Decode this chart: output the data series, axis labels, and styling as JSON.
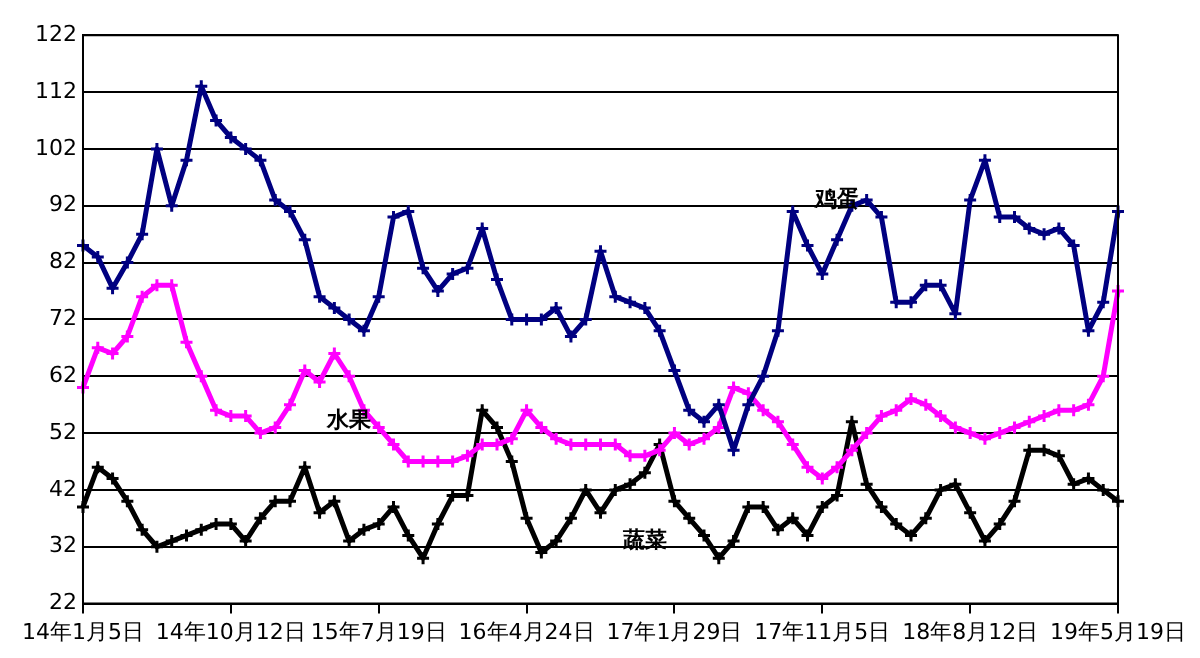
{
  "chart_data": {
    "type": "line",
    "categories": [
      "14年1月5日",
      null,
      null,
      null,
      null,
      null,
      null,
      null,
      null,
      null,
      "14年10月12日",
      null,
      null,
      null,
      null,
      null,
      null,
      null,
      null,
      null,
      "15年7月19日",
      null,
      null,
      null,
      null,
      null,
      null,
      null,
      null,
      null,
      "16年4月24日",
      null,
      null,
      null,
      null,
      null,
      null,
      null,
      null,
      null,
      "17年1月29日",
      null,
      null,
      null,
      null,
      null,
      null,
      null,
      null,
      null,
      "17年11月5日",
      null,
      null,
      null,
      null,
      null,
      null,
      null,
      null,
      null,
      "18年8月12日",
      null,
      null,
      null,
      null,
      null,
      null,
      null,
      null,
      null,
      "19年5月19日"
    ],
    "series": [
      {
        "name": "鸡蛋",
        "color": "#000080",
        "values": [
          85,
          83,
          77.5,
          82,
          87,
          102,
          92,
          100,
          113,
          107,
          104,
          102,
          100,
          93,
          91,
          86,
          76,
          74,
          72,
          70,
          76,
          90,
          91,
          81,
          77,
          80,
          81,
          88,
          79,
          72,
          72,
          72,
          74,
          69,
          72,
          84,
          76,
          75,
          74,
          70,
          63,
          56,
          54,
          57,
          49,
          57,
          62,
          70,
          91,
          85,
          80,
          86,
          92,
          93,
          90,
          75,
          75,
          78,
          78,
          73,
          93,
          100,
          90,
          90,
          88,
          87,
          88,
          85,
          70,
          75,
          91
        ]
      },
      {
        "name": "水果",
        "color": "#ff00ff",
        "values": [
          60,
          67,
          66,
          69,
          76,
          78,
          78,
          68,
          62,
          56,
          55,
          55,
          52,
          53,
          57,
          63,
          61,
          66,
          62,
          56,
          53,
          50,
          47,
          47,
          47,
          47,
          48,
          50,
          50,
          51,
          56,
          53,
          51,
          50,
          50,
          50,
          50,
          48,
          48,
          49,
          52,
          50,
          51,
          53,
          60,
          59,
          56,
          54,
          50,
          46,
          44,
          46,
          49,
          52,
          55,
          56,
          58,
          57,
          55,
          53,
          52,
          51,
          52,
          53,
          54,
          55,
          56,
          56,
          57,
          62,
          77
        ]
      },
      {
        "name": "蔬菜",
        "color": "#000000",
        "values": [
          39,
          46,
          44,
          40,
          35,
          32,
          33,
          34,
          35,
          36,
          36,
          33,
          37,
          40,
          40,
          46,
          38,
          40,
          33,
          35,
          36,
          39,
          34,
          30,
          36,
          41,
          41,
          56,
          53,
          47,
          37,
          31,
          33,
          37,
          42,
          38,
          42,
          43,
          45,
          50,
          40,
          37,
          34,
          30,
          33,
          39,
          39,
          35,
          37,
          34,
          39,
          41,
          54,
          43,
          39,
          36,
          34,
          37,
          42,
          43,
          38,
          33,
          36,
          40,
          49,
          49,
          48,
          43,
          44,
          42,
          40
        ]
      }
    ],
    "ylim": [
      22,
      122
    ],
    "yticks": [
      22,
      32,
      42,
      52,
      62,
      72,
      82,
      92,
      102,
      112,
      122
    ],
    "grid": "y",
    "legend": false,
    "marker": "cross",
    "line_style": "solid"
  }
}
